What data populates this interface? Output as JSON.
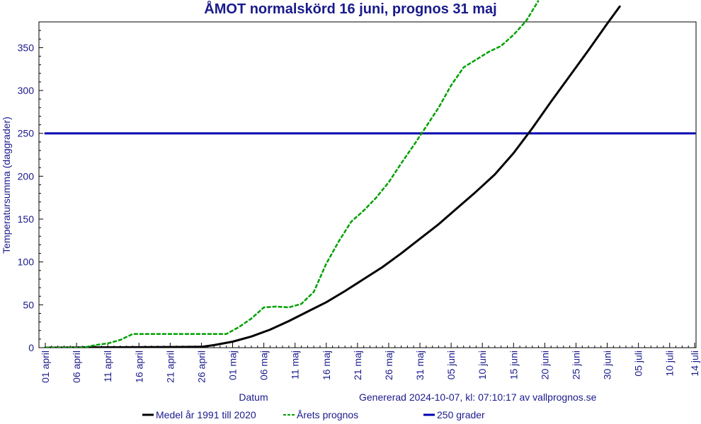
{
  "chart_data": {
    "type": "line",
    "title": "ÅMOT normalskörd 16 juni, prognos 31 maj",
    "xlabel": "Datum",
    "ylabel": "Temperatursumma (daggrader)",
    "ylim": [
      0,
      380
    ],
    "yticks": [
      0,
      50,
      100,
      150,
      200,
      250,
      300,
      350
    ],
    "x_ticks": [
      "01 april",
      "06 april",
      "11 april",
      "16 april",
      "21 april",
      "26 april",
      "01 maj",
      "06 maj",
      "11 maj",
      "16 maj",
      "21 maj",
      "26 maj",
      "31 maj",
      "05 juni",
      "10 juni",
      "15 juni",
      "20 juni",
      "25 juni",
      "30 juni",
      "05 juli",
      "10 juli",
      "14 juli"
    ],
    "xlim": [
      "2024-04-01",
      "2024-07-14"
    ],
    "grid": false,
    "series": [
      {
        "name": "Medel år 1991 till 2020",
        "color": "#000000",
        "style": "solid",
        "x": [
          "2024-04-01",
          "2024-04-26",
          "2024-04-28",
          "2024-05-01",
          "2024-05-04",
          "2024-05-07",
          "2024-05-10",
          "2024-05-13",
          "2024-05-16",
          "2024-05-19",
          "2024-05-22",
          "2024-05-25",
          "2024-05-28",
          "2024-05-31",
          "2024-06-03",
          "2024-06-06",
          "2024-06-09",
          "2024-06-12",
          "2024-06-15",
          "2024-06-18",
          "2024-06-21",
          "2024-06-24",
          "2024-06-27",
          "2024-06-30",
          "2024-07-02"
        ],
        "y": [
          0,
          1,
          3,
          7,
          13,
          21,
          31,
          42,
          53,
          66,
          80,
          94,
          110,
          127,
          144,
          163,
          182,
          202,
          227,
          256,
          287,
          317,
          347,
          378,
          398
        ]
      },
      {
        "name": "Årets prognos",
        "color": "#00a000",
        "style": "dashed",
        "x": [
          "2024-04-01",
          "2024-04-07",
          "2024-04-09",
          "2024-04-11",
          "2024-04-13",
          "2024-04-15",
          "2024-04-20",
          "2024-04-30",
          "2024-05-02",
          "2024-05-04",
          "2024-05-06",
          "2024-05-08",
          "2024-05-10",
          "2024-05-12",
          "2024-05-14",
          "2024-05-16",
          "2024-05-18",
          "2024-05-20",
          "2024-05-22",
          "2024-05-24",
          "2024-05-26",
          "2024-05-28",
          "2024-05-30",
          "2024-06-01",
          "2024-06-03",
          "2024-06-05",
          "2024-06-07",
          "2024-06-09",
          "2024-06-11",
          "2024-06-13",
          "2024-06-15",
          "2024-06-17",
          "2024-06-19"
        ],
        "y": [
          0,
          0,
          3,
          5,
          9,
          16,
          16,
          16,
          24,
          34,
          47,
          48,
          47,
          51,
          65,
          98,
          124,
          147,
          160,
          175,
          193,
          215,
          236,
          258,
          280,
          306,
          327,
          336,
          345,
          352,
          365,
          381,
          405
        ]
      },
      {
        "name": "250 grader",
        "color": "#0000b0",
        "style": "solid",
        "x": [
          "2024-04-01",
          "2024-07-14"
        ],
        "y": [
          250,
          250
        ]
      }
    ],
    "annotation": "Genererad 2024-10-07, kl: 07:10:17 av vallprognos.se"
  }
}
